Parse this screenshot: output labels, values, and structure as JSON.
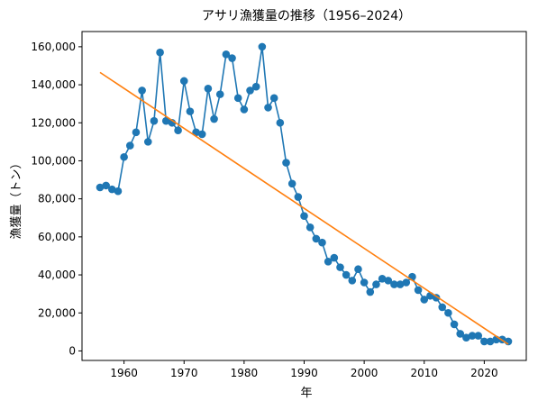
{
  "chart_data": {
    "type": "line",
    "title": "アサリ漁獲量の推移（1956–2024）",
    "xlabel": "年",
    "ylabel": "漁獲量（トン）",
    "xlim": [
      1953,
      2027
    ],
    "ylim": [
      -5000,
      168000
    ],
    "x_ticks": [
      1960,
      1970,
      1980,
      1990,
      2000,
      2010,
      2020
    ],
    "y_ticks": [
      0,
      20000,
      40000,
      60000,
      80000,
      100000,
      120000,
      140000,
      160000
    ],
    "y_tick_labels": [
      "0",
      "20,000",
      "40,000",
      "60,000",
      "80,000",
      "100,000",
      "120,000",
      "140,000",
      "160,000"
    ],
    "grid": false,
    "legend": "none",
    "colors": {
      "series": "#1f77b4",
      "trend": "#ff7f0e"
    },
    "series": [
      {
        "kind": "line-with-markers",
        "x": [
          1956,
          1957,
          1958,
          1959,
          1960,
          1961,
          1962,
          1963,
          1964,
          1965,
          1966,
          1967,
          1968,
          1969,
          1970,
          1971,
          1972,
          1973,
          1974,
          1975,
          1976,
          1977,
          1978,
          1979,
          1980,
          1981,
          1982,
          1983,
          1984,
          1985,
          1986,
          1987,
          1988,
          1989,
          1990,
          1991,
          1992,
          1993,
          1994,
          1995,
          1996,
          1997,
          1998,
          1999,
          2000,
          2001,
          2002,
          2003,
          2004,
          2005,
          2006,
          2007,
          2008,
          2009,
          2010,
          2011,
          2012,
          2013,
          2014,
          2015,
          2016,
          2017,
          2018,
          2019,
          2020,
          2021,
          2022,
          2023,
          2024
        ],
        "values": [
          86000,
          87000,
          85000,
          84000,
          102000,
          108000,
          115000,
          137000,
          110000,
          121000,
          157000,
          121000,
          120000,
          116000,
          142000,
          126000,
          115000,
          114000,
          138000,
          122000,
          135000,
          156000,
          154000,
          133000,
          127000,
          137000,
          139000,
          160000,
          128000,
          133000,
          120000,
          99000,
          88000,
          81000,
          71000,
          65000,
          59000,
          57000,
          47000,
          49000,
          44000,
          40000,
          37000,
          43000,
          36000,
          31000,
          35000,
          38000,
          37000,
          35000,
          35000,
          36000,
          39000,
          32000,
          27000,
          29000,
          28000,
          23000,
          20000,
          14000,
          9000,
          7000,
          8000,
          8000,
          5000,
          5000,
          6000,
          6000,
          5000
        ]
      },
      {
        "kind": "trend-line",
        "x": [
          1956,
          2024
        ],
        "values": [
          146500,
          3500
        ]
      }
    ]
  }
}
